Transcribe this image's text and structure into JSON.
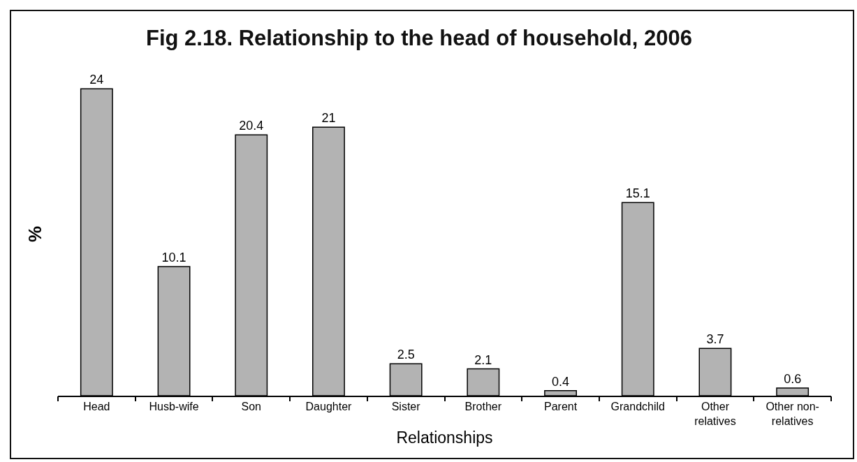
{
  "chart_data": {
    "type": "bar",
    "title": "Fig 2.18. Relationship to the head of household, 2006",
    "xlabel": "Relationships",
    "ylabel": "%",
    "categories": [
      "Head",
      "Husb-wife",
      "Son",
      "Daughter",
      "Sister",
      "Brother",
      "Parent",
      "Grandchild",
      "Other relatives",
      "Other non-relatives"
    ],
    "values": [
      24,
      10.1,
      20.4,
      21,
      2.5,
      2.1,
      0.4,
      15.1,
      3.7,
      0.6
    ],
    "color": "#b3b3b3",
    "data_labels": true,
    "tick_labels": "x"
  }
}
